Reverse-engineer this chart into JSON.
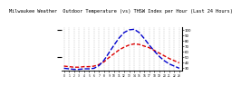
{
  "title_line1": "Milwaukee Weather  Outdoor Temperature (vs) THSW Index per Hour (Last 24 Hours)",
  "hours": [
    0,
    1,
    2,
    3,
    4,
    5,
    6,
    7,
    8,
    9,
    10,
    11,
    12,
    13,
    14,
    15,
    16,
    17,
    18,
    19,
    20,
    21,
    22,
    23
  ],
  "temp": [
    33,
    32,
    31,
    31,
    32,
    32,
    33,
    36,
    41,
    49,
    56,
    63,
    68,
    72,
    74,
    73,
    70,
    67,
    62,
    57,
    52,
    47,
    43,
    39
  ],
  "thsw": [
    29,
    28,
    27,
    27,
    28,
    28,
    29,
    34,
    44,
    58,
    72,
    85,
    95,
    100,
    101,
    95,
    84,
    72,
    61,
    51,
    43,
    37,
    33,
    29
  ],
  "temp_color": "#dd0000",
  "thsw_color": "#0000cc",
  "bg_color": "#ffffff",
  "grid_color": "#999999",
  "ylim_left": [
    25,
    105
  ],
  "ylim_right": [
    25,
    105
  ],
  "right_ticks": [
    30,
    40,
    50,
    60,
    70,
    80,
    90,
    100
  ],
  "title_fontsize": 3.8
}
